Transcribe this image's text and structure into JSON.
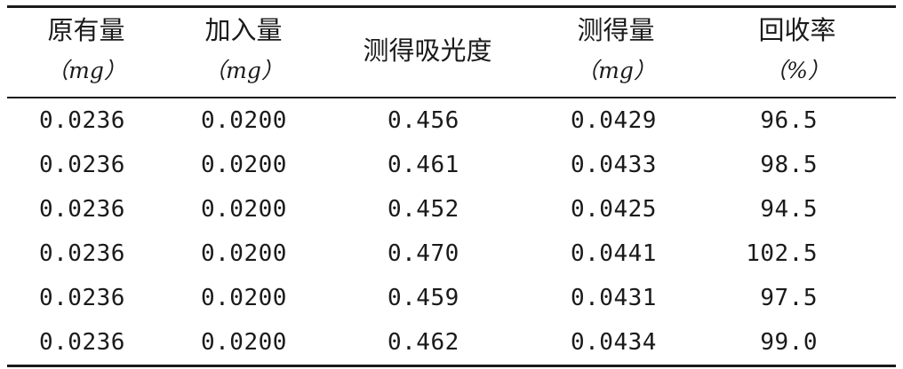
{
  "table": {
    "headers": [
      {
        "label": "原有量",
        "unit": "（mg）"
      },
      {
        "label": "加入量",
        "unit": "（mg）"
      },
      {
        "label": "测得吸光度",
        "unit": ""
      },
      {
        "label": "测得量",
        "unit": "（mg）"
      },
      {
        "label": "回收率",
        "unit": "（%）"
      }
    ],
    "rows": [
      [
        "0.0236",
        "0.0200",
        "0.456",
        "0.0429",
        "96.5"
      ],
      [
        "0.0236",
        "0.0200",
        "0.461",
        "0.0433",
        "98.5"
      ],
      [
        "0.0236",
        "0.0200",
        "0.452",
        "0.0425",
        "94.5"
      ],
      [
        "0.0236",
        "0.0200",
        "0.470",
        "0.0441",
        "102.5"
      ],
      [
        "0.0236",
        "0.0200",
        "0.459",
        "0.0431",
        "97.5"
      ],
      [
        "0.0236",
        "0.0200",
        "0.462",
        "0.0434",
        "99.0"
      ]
    ]
  }
}
